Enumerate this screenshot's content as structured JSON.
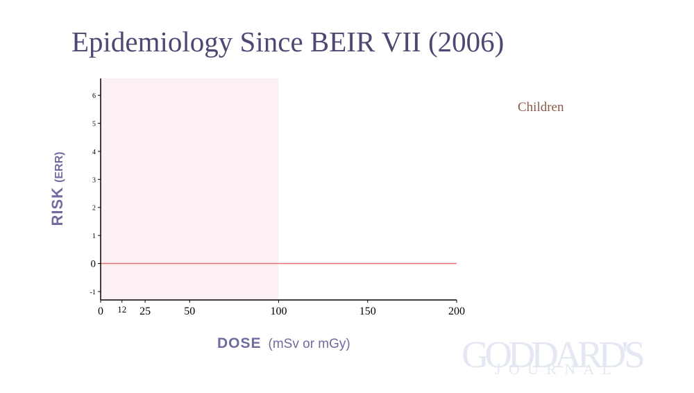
{
  "slide": {
    "title": "Epidemiology Since BEIR VII (2006)",
    "legend_label": "Children",
    "watermark": {
      "line1": "GODDARD'S",
      "line2": "JOURNAL"
    }
  },
  "chart_data": {
    "type": "line",
    "xlabel": "DOSE",
    "xlabel_sub": "(mSv or mGy)",
    "ylabel": "RISK",
    "ylabel_sub": "(ERR)",
    "xlim": [
      0,
      200
    ],
    "ylim": [
      -1.3,
      6.6
    ],
    "x_ticks": [
      {
        "value": 0,
        "label": "0"
      },
      {
        "value": 12,
        "label": "12"
      },
      {
        "value": 25,
        "label": "25"
      },
      {
        "value": 50,
        "label": "50"
      },
      {
        "value": 100,
        "label": "100"
      },
      {
        "value": 150,
        "label": "150"
      },
      {
        "value": 200,
        "label": "200"
      }
    ],
    "y_ticks": [
      {
        "value": -1,
        "label": "-1"
      },
      {
        "value": 0,
        "label": "0"
      },
      {
        "value": 1,
        "label": "1"
      },
      {
        "value": 2,
        "label": "2"
      },
      {
        "value": 3,
        "label": "3"
      },
      {
        "value": 4,
        "label": "4"
      },
      {
        "value": 5,
        "label": "5"
      },
      {
        "value": 6,
        "label": "6"
      }
    ],
    "shaded_region": {
      "x_from": 0,
      "x_to": 100,
      "color": "#fdf0f3"
    },
    "series": [
      {
        "x": [
          0,
          200
        ],
        "y": [
          0,
          0
        ],
        "color": "#e8706e"
      }
    ],
    "grid": false,
    "colors": {
      "axis": "#000000",
      "label": "#6f6c9e",
      "title": "#4c4973"
    }
  }
}
